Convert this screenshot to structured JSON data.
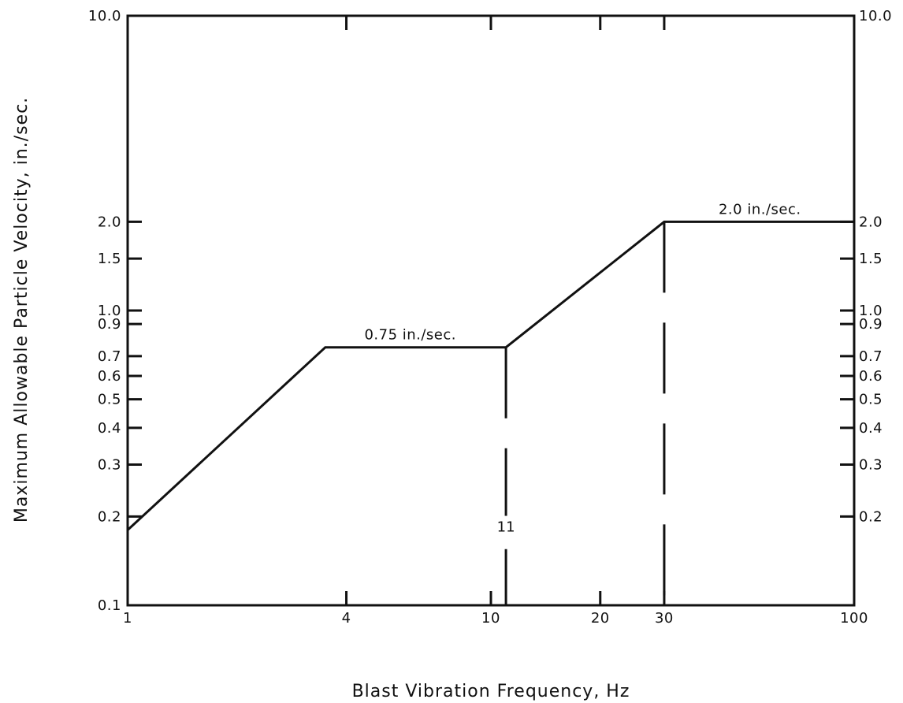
{
  "chart_data": {
    "type": "line",
    "x_scale": "log",
    "y_scale": "log",
    "xlim": [
      1,
      100
    ],
    "ylim": [
      0.1,
      10.0
    ],
    "xlabel": "Blast Vibration Frequency, Hz",
    "ylabel": "Maximum Allowable Particle Velocity, in./sec.",
    "grid": false,
    "x_ticks": [
      {
        "value": 1,
        "label": "1"
      },
      {
        "value": 4,
        "label": "4"
      },
      {
        "value": 10,
        "label": "10"
      },
      {
        "value": 20,
        "label": "20"
      },
      {
        "value": 30,
        "label": "30"
      },
      {
        "value": 100,
        "label": "100"
      }
    ],
    "y_ticks_left": [
      {
        "value": 0.1,
        "label": "0.1"
      },
      {
        "value": 0.2,
        "label": "0.2"
      },
      {
        "value": 0.3,
        "label": "0.3"
      },
      {
        "value": 0.4,
        "label": "0.4"
      },
      {
        "value": 0.5,
        "label": "0.5"
      },
      {
        "value": 0.6,
        "label": "0.6"
      },
      {
        "value": 0.7,
        "label": "0.7"
      },
      {
        "value": 0.9,
        "label": "0.9"
      },
      {
        "value": 1.0,
        "label": "1.0"
      },
      {
        "value": 1.5,
        "label": "1.5"
      },
      {
        "value": 2.0,
        "label": "2.0"
      },
      {
        "value": 10.0,
        "label": "10.0"
      }
    ],
    "y_ticks_right": [
      {
        "value": 0.2,
        "label": "0.2"
      },
      {
        "value": 0.3,
        "label": "0.3"
      },
      {
        "value": 0.4,
        "label": "0.4"
      },
      {
        "value": 0.5,
        "label": "0.5"
      },
      {
        "value": 0.6,
        "label": "0.6"
      },
      {
        "value": 0.7,
        "label": "0.7"
      },
      {
        "value": 0.9,
        "label": "0.9"
      },
      {
        "value": 1.0,
        "label": "1.0"
      },
      {
        "value": 1.5,
        "label": "1.5"
      },
      {
        "value": 2.0,
        "label": "2.0"
      },
      {
        "value": 10.0,
        "label": "10.0"
      }
    ],
    "series": [
      {
        "x": [
          1,
          3.5,
          11,
          30,
          100
        ],
        "y": [
          0.18,
          0.75,
          0.75,
          2.0,
          2.0
        ]
      }
    ],
    "vertical_markers": [
      {
        "x": 11,
        "y_top": 0.75,
        "label": "11"
      },
      {
        "x": 30,
        "y_top": 2.0,
        "label": ""
      }
    ],
    "annotations": [
      {
        "text": "0.75 in./sec.",
        "x": 6.0,
        "y": 0.75
      },
      {
        "text": "2.0 in./sec.",
        "x": 55,
        "y": 2.0
      }
    ]
  }
}
